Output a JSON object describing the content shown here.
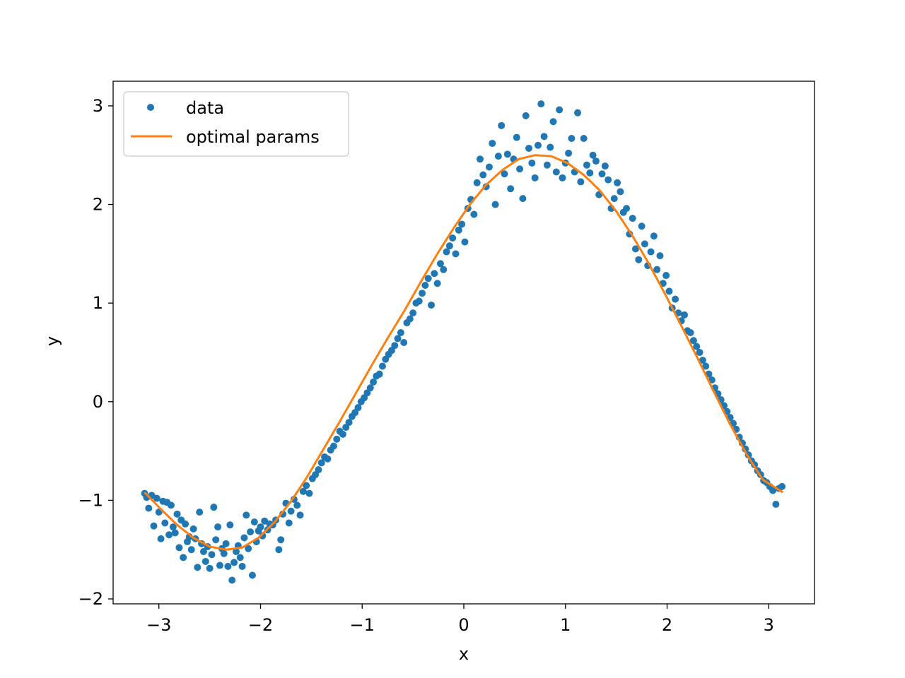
{
  "chart_data": {
    "type": "scatter",
    "title": "",
    "xlabel": "x",
    "ylabel": "y",
    "xlim": [
      -3.45,
      3.45
    ],
    "ylim": [
      -2.05,
      3.25
    ],
    "xticks": [
      {
        "value": -3,
        "label": "−3"
      },
      {
        "value": -2,
        "label": "−2"
      },
      {
        "value": -1,
        "label": "−1"
      },
      {
        "value": 0,
        "label": "0"
      },
      {
        "value": 1,
        "label": "1"
      },
      {
        "value": 2,
        "label": "2"
      },
      {
        "value": 3,
        "label": "3"
      }
    ],
    "yticks": [
      {
        "value": -2,
        "label": "−2"
      },
      {
        "value": -1,
        "label": "−1"
      },
      {
        "value": 0,
        "label": "0"
      },
      {
        "value": 1,
        "label": "1"
      },
      {
        "value": 2,
        "label": "2"
      },
      {
        "value": 3,
        "label": "3"
      }
    ],
    "grid": false,
    "legend_position": "top-left",
    "series": [
      {
        "name": "data",
        "kind": "scatter",
        "color": "#1f77b4",
        "points": [
          [
            -3.14,
            -0.93
          ],
          [
            -3.12,
            -0.97
          ],
          [
            -3.1,
            -1.08
          ],
          [
            -3.07,
            -0.95
          ],
          [
            -3.05,
            -1.26
          ],
          [
            -3.02,
            -0.98
          ],
          [
            -3.0,
            -1.12
          ],
          [
            -2.98,
            -1.39
          ],
          [
            -2.96,
            -1.01
          ],
          [
            -2.94,
            -1.23
          ],
          [
            -2.92,
            -1.02
          ],
          [
            -2.9,
            -1.35
          ],
          [
            -2.88,
            -1.05
          ],
          [
            -2.86,
            -1.27
          ],
          [
            -2.84,
            -1.33
          ],
          [
            -2.82,
            -1.14
          ],
          [
            -2.8,
            -1.48
          ],
          [
            -2.78,
            -1.2
          ],
          [
            -2.76,
            -1.58
          ],
          [
            -2.74,
            -1.24
          ],
          [
            -2.72,
            -1.42
          ],
          [
            -2.7,
            -1.37
          ],
          [
            -2.68,
            -1.5
          ],
          [
            -2.66,
            -1.29
          ],
          [
            -2.64,
            -1.39
          ],
          [
            -2.62,
            -1.68
          ],
          [
            -2.6,
            -1.12
          ],
          [
            -2.58,
            -1.44
          ],
          [
            -2.56,
            -1.52
          ],
          [
            -2.54,
            -1.62
          ],
          [
            -2.52,
            -1.47
          ],
          [
            -2.5,
            -1.69
          ],
          [
            -2.48,
            -1.55
          ],
          [
            -2.46,
            -1.07
          ],
          [
            -2.44,
            -1.4
          ],
          [
            -2.42,
            -1.27
          ],
          [
            -2.4,
            -1.66
          ],
          [
            -2.38,
            -1.49
          ],
          [
            -2.36,
            -1.54
          ],
          [
            -2.34,
            -1.44
          ],
          [
            -2.32,
            -1.67
          ],
          [
            -2.3,
            -1.25
          ],
          [
            -2.28,
            -1.81
          ],
          [
            -2.26,
            -1.63
          ],
          [
            -2.24,
            -1.52
          ],
          [
            -2.22,
            -1.46
          ],
          [
            -2.2,
            -1.58
          ],
          [
            -2.18,
            -1.67
          ],
          [
            -2.16,
            -1.38
          ],
          [
            -2.14,
            -1.15
          ],
          [
            -2.12,
            -1.49
          ],
          [
            -2.1,
            -1.32
          ],
          [
            -2.08,
            -1.76
          ],
          [
            -2.06,
            -1.22
          ],
          [
            -2.04,
            -1.42
          ],
          [
            -2.02,
            -1.31
          ],
          [
            -2.0,
            -1.27
          ],
          [
            -1.98,
            -1.36
          ],
          [
            -1.96,
            -1.21
          ],
          [
            -1.93,
            -1.3
          ],
          [
            -1.91,
            -1.24
          ],
          [
            -1.88,
            -1.25
          ],
          [
            -1.85,
            -1.2
          ],
          [
            -1.82,
            -1.5
          ],
          [
            -1.8,
            -1.4
          ],
          [
            -1.78,
            -1.14
          ],
          [
            -1.75,
            -1.03
          ],
          [
            -1.72,
            -1.23
          ],
          [
            -1.7,
            -1.11
          ],
          [
            -1.67,
            -0.99
          ],
          [
            -1.64,
            -1.05
          ],
          [
            -1.61,
            -1.15
          ],
          [
            -1.58,
            -0.91
          ],
          [
            -1.55,
            -0.85
          ],
          [
            -1.52,
            -0.93
          ],
          [
            -1.49,
            -0.78
          ],
          [
            -1.46,
            -0.74
          ],
          [
            -1.43,
            -0.69
          ],
          [
            -1.4,
            -0.62
          ],
          [
            -1.37,
            -0.56
          ],
          [
            -1.34,
            -0.58
          ],
          [
            -1.31,
            -0.49
          ],
          [
            -1.28,
            -0.45
          ],
          [
            -1.25,
            -0.38
          ],
          [
            -1.22,
            -0.3
          ],
          [
            -1.19,
            -0.33
          ],
          [
            -1.16,
            -0.26
          ],
          [
            -1.13,
            -0.21
          ],
          [
            -1.1,
            -0.15
          ],
          [
            -1.07,
            -0.11
          ],
          [
            -1.04,
            -0.06
          ],
          [
            -1.01,
            0.0
          ],
          [
            -0.98,
            0.04
          ],
          [
            -0.95,
            0.09
          ],
          [
            -0.92,
            0.14
          ],
          [
            -0.89,
            0.2
          ],
          [
            -0.86,
            0.26
          ],
          [
            -0.83,
            0.28
          ],
          [
            -0.8,
            0.36
          ],
          [
            -0.77,
            0.43
          ],
          [
            -0.74,
            0.48
          ],
          [
            -0.71,
            0.52
          ],
          [
            -0.68,
            0.57
          ],
          [
            -0.65,
            0.64
          ],
          [
            -0.62,
            0.7
          ],
          [
            -0.59,
            0.6
          ],
          [
            -0.56,
            0.8
          ],
          [
            -0.53,
            0.84
          ],
          [
            -0.5,
            0.9
          ],
          [
            -0.47,
            1.0
          ],
          [
            -0.44,
            1.02
          ],
          [
            -0.41,
            1.1
          ],
          [
            -0.38,
            1.18
          ],
          [
            -0.35,
            1.25
          ],
          [
            -0.32,
            0.98
          ],
          [
            -0.29,
            1.3
          ],
          [
            -0.26,
            1.2
          ],
          [
            -0.23,
            1.4
          ],
          [
            -0.2,
            1.34
          ],
          [
            -0.17,
            1.52
          ],
          [
            -0.14,
            1.58
          ],
          [
            -0.11,
            1.66
          ],
          [
            -0.08,
            1.5
          ],
          [
            -0.05,
            1.74
          ],
          [
            -0.02,
            1.8
          ],
          [
            0.01,
            1.62
          ],
          [
            0.04,
            1.96
          ],
          [
            0.07,
            2.05
          ],
          [
            0.1,
            1.9
          ],
          [
            0.13,
            2.22
          ],
          [
            0.16,
            2.46
          ],
          [
            0.19,
            2.3
          ],
          [
            0.22,
            2.18
          ],
          [
            0.25,
            2.38
          ],
          [
            0.28,
            2.62
          ],
          [
            0.31,
            2.0
          ],
          [
            0.34,
            2.49
          ],
          [
            0.37,
            2.8
          ],
          [
            0.4,
            2.31
          ],
          [
            0.43,
            2.51
          ],
          [
            0.46,
            2.16
          ],
          [
            0.49,
            2.46
          ],
          [
            0.52,
            2.68
          ],
          [
            0.55,
            2.36
          ],
          [
            0.58,
            2.06
          ],
          [
            0.61,
            2.9
          ],
          [
            0.64,
            2.57
          ],
          [
            0.67,
            2.42
          ],
          [
            0.7,
            2.27
          ],
          [
            0.73,
            2.6
          ],
          [
            0.76,
            3.02
          ],
          [
            0.79,
            2.69
          ],
          [
            0.82,
            2.4
          ],
          [
            0.85,
            2.58
          ],
          [
            0.88,
            2.84
          ],
          [
            0.91,
            2.33
          ],
          [
            0.94,
            2.96
          ],
          [
            0.97,
            2.27
          ],
          [
            1.0,
            2.42
          ],
          [
            1.03,
            2.52
          ],
          [
            1.06,
            2.67
          ],
          [
            1.09,
            2.33
          ],
          [
            1.12,
            2.93
          ],
          [
            1.15,
            2.23
          ],
          [
            1.18,
            2.67
          ],
          [
            1.21,
            2.4
          ],
          [
            1.24,
            2.32
          ],
          [
            1.27,
            2.5
          ],
          [
            1.3,
            2.44
          ],
          [
            1.33,
            2.1
          ],
          [
            1.36,
            2.31
          ],
          [
            1.39,
            2.39
          ],
          [
            1.42,
            2.25
          ],
          [
            1.45,
            1.96
          ],
          [
            1.48,
            2.06
          ],
          [
            1.51,
            2.22
          ],
          [
            1.54,
            2.13
          ],
          [
            1.57,
            1.92
          ],
          [
            1.6,
            1.96
          ],
          [
            1.63,
            1.7
          ],
          [
            1.66,
            1.86
          ],
          [
            1.69,
            1.55
          ],
          [
            1.72,
            1.44
          ],
          [
            1.75,
            1.78
          ],
          [
            1.78,
            1.6
          ],
          [
            1.81,
            1.38
          ],
          [
            1.84,
            1.52
          ],
          [
            1.87,
            1.68
          ],
          [
            1.9,
            1.34
          ],
          [
            1.93,
            1.48
          ],
          [
            1.96,
            1.2
          ],
          [
            1.99,
            1.28
          ],
          [
            2.02,
            1.12
          ],
          [
            2.05,
            0.95
          ],
          [
            2.08,
            1.04
          ],
          [
            2.11,
            0.9
          ],
          [
            2.14,
            0.82
          ],
          [
            2.17,
            0.88
          ],
          [
            2.2,
            0.72
          ],
          [
            2.23,
            0.7
          ],
          [
            2.26,
            0.62
          ],
          [
            2.29,
            0.56
          ],
          [
            2.32,
            0.5
          ],
          [
            2.35,
            0.42
          ],
          [
            2.38,
            0.36
          ],
          [
            2.41,
            0.28
          ],
          [
            2.44,
            0.22
          ],
          [
            2.47,
            0.14
          ],
          [
            2.5,
            0.08
          ],
          [
            2.53,
            0.02
          ],
          [
            2.56,
            -0.04
          ],
          [
            2.59,
            -0.1
          ],
          [
            2.62,
            -0.16
          ],
          [
            2.65,
            -0.22
          ],
          [
            2.68,
            -0.28
          ],
          [
            2.71,
            -0.36
          ],
          [
            2.74,
            -0.42
          ],
          [
            2.77,
            -0.48
          ],
          [
            2.8,
            -0.54
          ],
          [
            2.83,
            -0.6
          ],
          [
            2.86,
            -0.64
          ],
          [
            2.89,
            -0.7
          ],
          [
            2.92,
            -0.74
          ],
          [
            2.95,
            -0.8
          ],
          [
            2.98,
            -0.82
          ],
          [
            3.01,
            -0.86
          ],
          [
            3.04,
            -0.9
          ],
          [
            3.07,
            -1.04
          ],
          [
            3.1,
            -0.88
          ],
          [
            3.13,
            -0.86
          ]
        ]
      },
      {
        "name": "optimal params",
        "kind": "line",
        "color": "#ff7f0e",
        "x": [
          -3.14,
          -2.98,
          -2.82,
          -2.66,
          -2.5,
          -2.34,
          -2.18,
          -2.02,
          -1.86,
          -1.7,
          -1.54,
          -1.38,
          -1.22,
          -1.06,
          -0.9,
          -0.74,
          -0.58,
          -0.42,
          -0.26,
          -0.1,
          0.06,
          0.22,
          0.38,
          0.54,
          0.7,
          0.86,
          1.02,
          1.18,
          1.34,
          1.5,
          1.66,
          1.82,
          1.98,
          2.14,
          2.3,
          2.46,
          2.62,
          2.78,
          2.94,
          3.14
        ],
        "y": [
          -0.92,
          -1.09,
          -1.25,
          -1.38,
          -1.47,
          -1.5,
          -1.48,
          -1.38,
          -1.22,
          -1.01,
          -0.76,
          -0.48,
          -0.2,
          0.09,
          0.38,
          0.66,
          0.93,
          1.22,
          1.5,
          1.76,
          2.0,
          2.2,
          2.35,
          2.46,
          2.5,
          2.49,
          2.42,
          2.3,
          2.14,
          1.93,
          1.68,
          1.4,
          1.09,
          0.77,
          0.44,
          0.1,
          -0.23,
          -0.53,
          -0.79,
          -0.92
        ]
      }
    ]
  }
}
